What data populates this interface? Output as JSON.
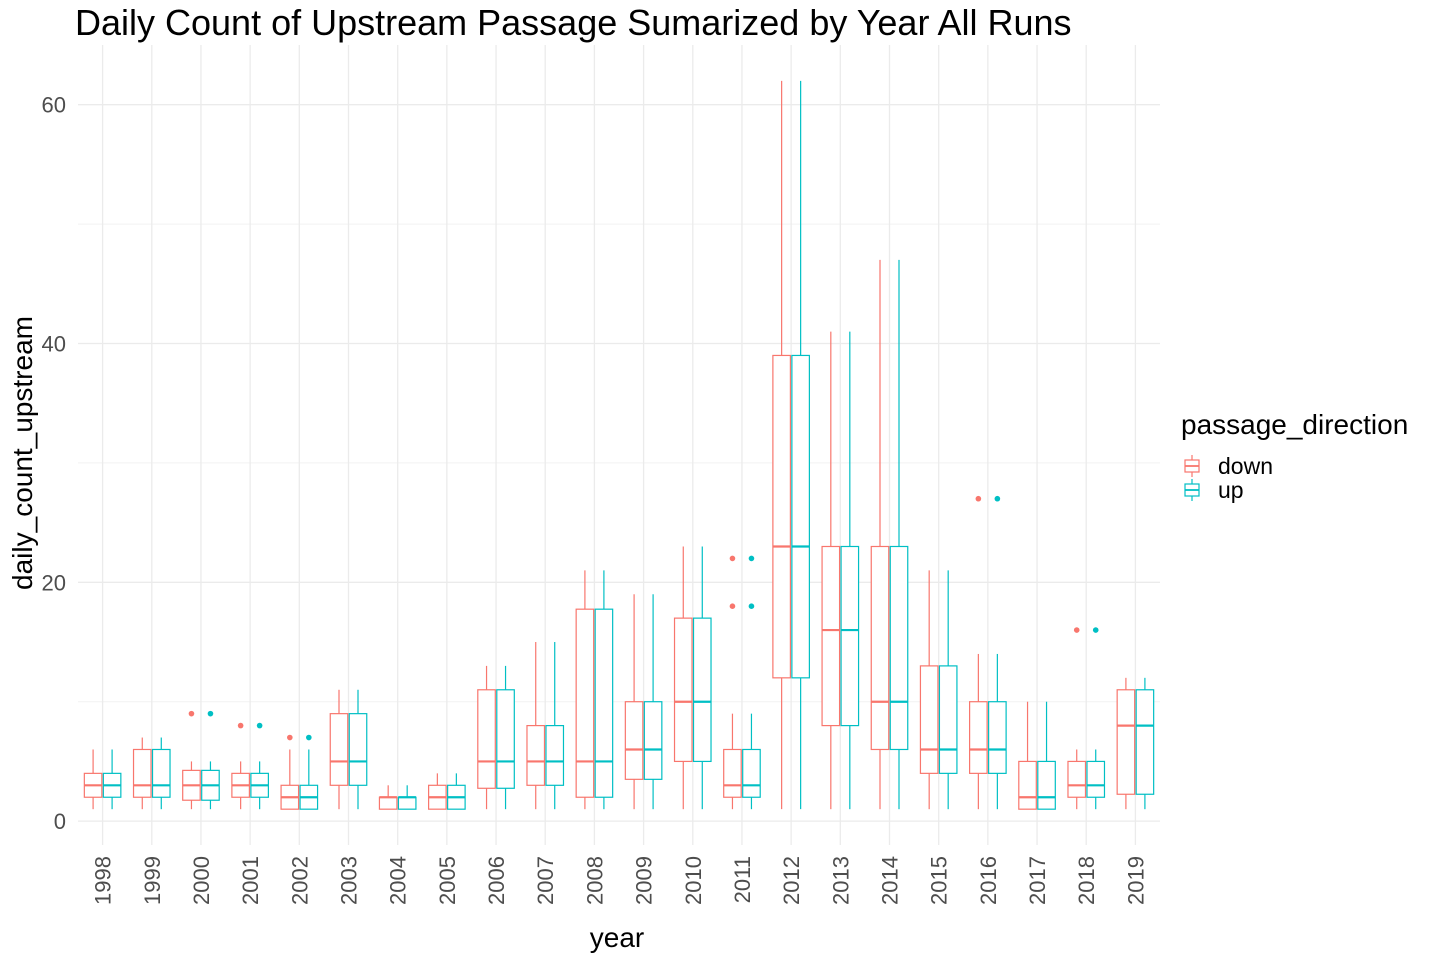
{
  "chart_data": {
    "type": "boxplot",
    "title": "Daily Count of Upstream Passage Sumarized by Year All Runs",
    "xlabel": "year",
    "ylabel": "daily_count_upstream",
    "ylim": [
      -2,
      65
    ],
    "yticks": [
      0,
      20,
      40,
      60
    ],
    "grid": true,
    "legend": {
      "title": "passage_direction",
      "placement": "right",
      "entries": [
        {
          "name": "down",
          "color": "#F8766D"
        },
        {
          "name": "up",
          "color": "#00BFC4"
        }
      ]
    },
    "categories": [
      "1998",
      "1999",
      "2000",
      "2001",
      "2002",
      "2003",
      "2004",
      "2005",
      "2006",
      "2007",
      "2008",
      "2009",
      "2010",
      "2011",
      "2012",
      "2013",
      "2014",
      "2015",
      "2016",
      "2017",
      "2018",
      "2019"
    ],
    "series": [
      {
        "name": "down",
        "color": "#F8766D",
        "boxes": [
          {
            "min": 1,
            "q1": 2,
            "median": 3,
            "q3": 4,
            "max": 6,
            "outliers": []
          },
          {
            "min": 1,
            "q1": 2,
            "median": 3,
            "q3": 6,
            "max": 7,
            "outliers": []
          },
          {
            "min": 1,
            "q1": 1.75,
            "median": 3,
            "q3": 4.25,
            "max": 5,
            "outliers": [
              9
            ]
          },
          {
            "min": 1,
            "q1": 2,
            "median": 3,
            "q3": 4,
            "max": 5,
            "outliers": [
              8
            ]
          },
          {
            "min": 1,
            "q1": 1,
            "median": 2,
            "q3": 3,
            "max": 6,
            "outliers": [
              7
            ]
          },
          {
            "min": 1,
            "q1": 3,
            "median": 5,
            "q3": 9,
            "max": 11,
            "outliers": []
          },
          {
            "min": 1,
            "q1": 1,
            "median": 2,
            "q3": 2,
            "max": 3,
            "outliers": []
          },
          {
            "min": 1,
            "q1": 1,
            "median": 2,
            "q3": 3,
            "max": 4,
            "outliers": []
          },
          {
            "min": 1,
            "q1": 2.75,
            "median": 5,
            "q3": 11,
            "max": 13,
            "outliers": []
          },
          {
            "min": 1,
            "q1": 3,
            "median": 5,
            "q3": 8,
            "max": 15,
            "outliers": []
          },
          {
            "min": 1,
            "q1": 2,
            "median": 5,
            "q3": 17.75,
            "max": 21,
            "outliers": []
          },
          {
            "min": 1,
            "q1": 3.5,
            "median": 6,
            "q3": 10,
            "max": 19,
            "outliers": []
          },
          {
            "min": 1,
            "q1": 5,
            "median": 10,
            "q3": 17,
            "max": 23,
            "outliers": []
          },
          {
            "min": 1,
            "q1": 2,
            "median": 3,
            "q3": 6,
            "max": 9,
            "outliers": [
              18,
              22
            ]
          },
          {
            "min": 1,
            "q1": 12,
            "median": 23,
            "q3": 39,
            "max": 62,
            "outliers": []
          },
          {
            "min": 1,
            "q1": 8,
            "median": 16,
            "q3": 23,
            "max": 41,
            "outliers": []
          },
          {
            "min": 1,
            "q1": 6,
            "median": 10,
            "q3": 23,
            "max": 47,
            "outliers": []
          },
          {
            "min": 1,
            "q1": 4,
            "median": 6,
            "q3": 13,
            "max": 21,
            "outliers": []
          },
          {
            "min": 1,
            "q1": 4,
            "median": 6,
            "q3": 10,
            "max": 14,
            "outliers": [
              27
            ]
          },
          {
            "min": 1,
            "q1": 1,
            "median": 2,
            "q3": 5,
            "max": 10,
            "outliers": []
          },
          {
            "min": 1,
            "q1": 2,
            "median": 3,
            "q3": 5,
            "max": 6,
            "outliers": [
              16
            ]
          },
          {
            "min": 1,
            "q1": 2.25,
            "median": 8,
            "q3": 11,
            "max": 12,
            "outliers": []
          }
        ]
      },
      {
        "name": "up",
        "color": "#00BFC4",
        "boxes": [
          {
            "min": 1,
            "q1": 2,
            "median": 3,
            "q3": 4,
            "max": 6,
            "outliers": []
          },
          {
            "min": 1,
            "q1": 2,
            "median": 3,
            "q3": 6,
            "max": 7,
            "outliers": []
          },
          {
            "min": 1,
            "q1": 1.75,
            "median": 3,
            "q3": 4.25,
            "max": 5,
            "outliers": [
              9
            ]
          },
          {
            "min": 1,
            "q1": 2,
            "median": 3,
            "q3": 4,
            "max": 5,
            "outliers": [
              8
            ]
          },
          {
            "min": 1,
            "q1": 1,
            "median": 2,
            "q3": 3,
            "max": 6,
            "outliers": [
              7
            ]
          },
          {
            "min": 1,
            "q1": 3,
            "median": 5,
            "q3": 9,
            "max": 11,
            "outliers": []
          },
          {
            "min": 1,
            "q1": 1,
            "median": 2,
            "q3": 2,
            "max": 3,
            "outliers": []
          },
          {
            "min": 1,
            "q1": 1,
            "median": 2,
            "q3": 3,
            "max": 4,
            "outliers": []
          },
          {
            "min": 1,
            "q1": 2.75,
            "median": 5,
            "q3": 11,
            "max": 13,
            "outliers": []
          },
          {
            "min": 1,
            "q1": 3,
            "median": 5,
            "q3": 8,
            "max": 15,
            "outliers": []
          },
          {
            "min": 1,
            "q1": 2,
            "median": 5,
            "q3": 17.75,
            "max": 21,
            "outliers": []
          },
          {
            "min": 1,
            "q1": 3.5,
            "median": 6,
            "q3": 10,
            "max": 19,
            "outliers": []
          },
          {
            "min": 1,
            "q1": 5,
            "median": 10,
            "q3": 17,
            "max": 23,
            "outliers": []
          },
          {
            "min": 1,
            "q1": 2,
            "median": 3,
            "q3": 6,
            "max": 9,
            "outliers": [
              18,
              22
            ]
          },
          {
            "min": 1,
            "q1": 12,
            "median": 23,
            "q3": 39,
            "max": 62,
            "outliers": []
          },
          {
            "min": 1,
            "q1": 8,
            "median": 16,
            "q3": 23,
            "max": 41,
            "outliers": []
          },
          {
            "min": 1,
            "q1": 6,
            "median": 10,
            "q3": 23,
            "max": 47,
            "outliers": []
          },
          {
            "min": 1,
            "q1": 4,
            "median": 6,
            "q3": 13,
            "max": 21,
            "outliers": []
          },
          {
            "min": 1,
            "q1": 4,
            "median": 6,
            "q3": 10,
            "max": 14,
            "outliers": [
              27
            ]
          },
          {
            "min": 1,
            "q1": 1,
            "median": 2,
            "q3": 5,
            "max": 10,
            "outliers": []
          },
          {
            "min": 1,
            "q1": 2,
            "median": 3,
            "q3": 5,
            "max": 6,
            "outliers": [
              16
            ]
          },
          {
            "min": 1,
            "q1": 2.25,
            "median": 8,
            "q3": 11,
            "max": 12,
            "outliers": []
          }
        ]
      }
    ]
  }
}
